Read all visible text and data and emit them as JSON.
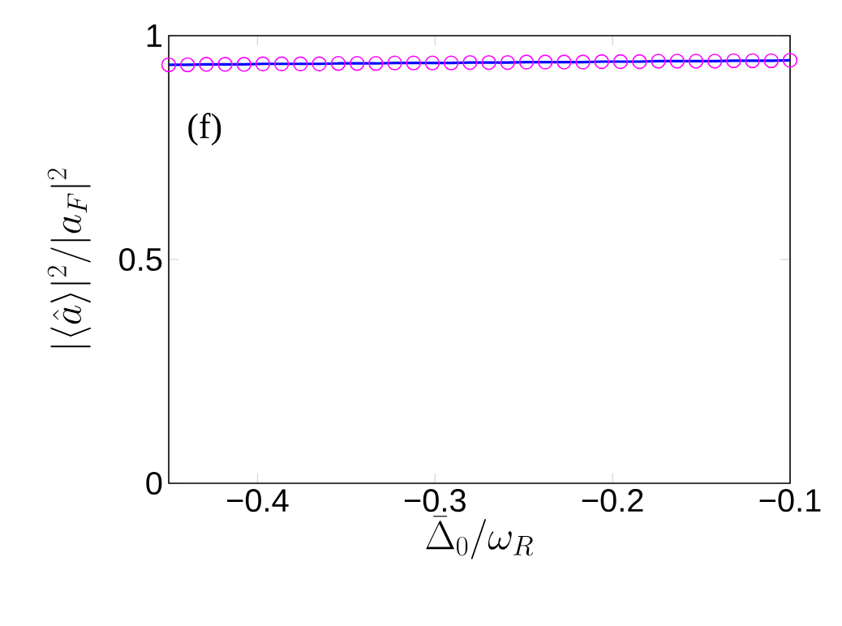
{
  "chart_data": {
    "type": "line",
    "xlabel": "\\bar{\\Delta}_0/\\omega_R",
    "ylabel": "|\\langle\\hat{a}\\rangle|^2/|a_F|^2",
    "annotations": [
      "(f)"
    ],
    "x": [
      -0.45,
      -0.4394,
      -0.4288,
      -0.4182,
      -0.4076,
      -0.397,
      -0.3864,
      -0.3758,
      -0.3652,
      -0.3545,
      -0.3439,
      -0.3333,
      -0.3227,
      -0.3121,
      -0.3015,
      -0.2909,
      -0.2803,
      -0.2697,
      -0.2591,
      -0.2485,
      -0.2379,
      -0.2273,
      -0.2167,
      -0.2061,
      -0.1955,
      -0.1848,
      -0.1742,
      -0.1636,
      -0.153,
      -0.1424,
      -0.1318,
      -0.1212,
      -0.1106,
      -0.1
    ],
    "series": [
      {
        "color": "#0000ff",
        "marker": "none",
        "values": [
          0.935,
          0.935,
          0.936,
          0.936,
          0.936,
          0.937,
          0.937,
          0.937,
          0.937,
          0.938,
          0.938,
          0.938,
          0.939,
          0.939,
          0.939,
          0.939,
          0.94,
          0.94,
          0.94,
          0.941,
          0.941,
          0.941,
          0.941,
          0.942,
          0.942,
          0.942,
          0.943,
          0.943,
          0.943,
          0.943,
          0.944,
          0.944,
          0.944,
          0.945
        ]
      },
      {
        "type": "scatter",
        "color": "#ff00ff",
        "marker": "circle",
        "values": [
          0.935,
          0.935,
          0.936,
          0.936,
          0.936,
          0.937,
          0.937,
          0.937,
          0.937,
          0.938,
          0.938,
          0.938,
          0.939,
          0.939,
          0.939,
          0.939,
          0.94,
          0.94,
          0.94,
          0.941,
          0.941,
          0.941,
          0.941,
          0.942,
          0.942,
          0.942,
          0.943,
          0.943,
          0.943,
          0.943,
          0.944,
          0.944,
          0.944,
          0.945
        ]
      }
    ],
    "xlim": [
      -0.45,
      -0.1
    ],
    "ylim": [
      0,
      1
    ],
    "xticks": [
      {
        "value": -0.4,
        "label": "−0.4"
      },
      {
        "value": -0.3,
        "label": "−0.3"
      },
      {
        "value": -0.2,
        "label": "−0.2"
      },
      {
        "value": -0.1,
        "label": "−0.1"
      }
    ],
    "yticks": [
      0,
      0.5,
      1
    ],
    "grid": false
  }
}
